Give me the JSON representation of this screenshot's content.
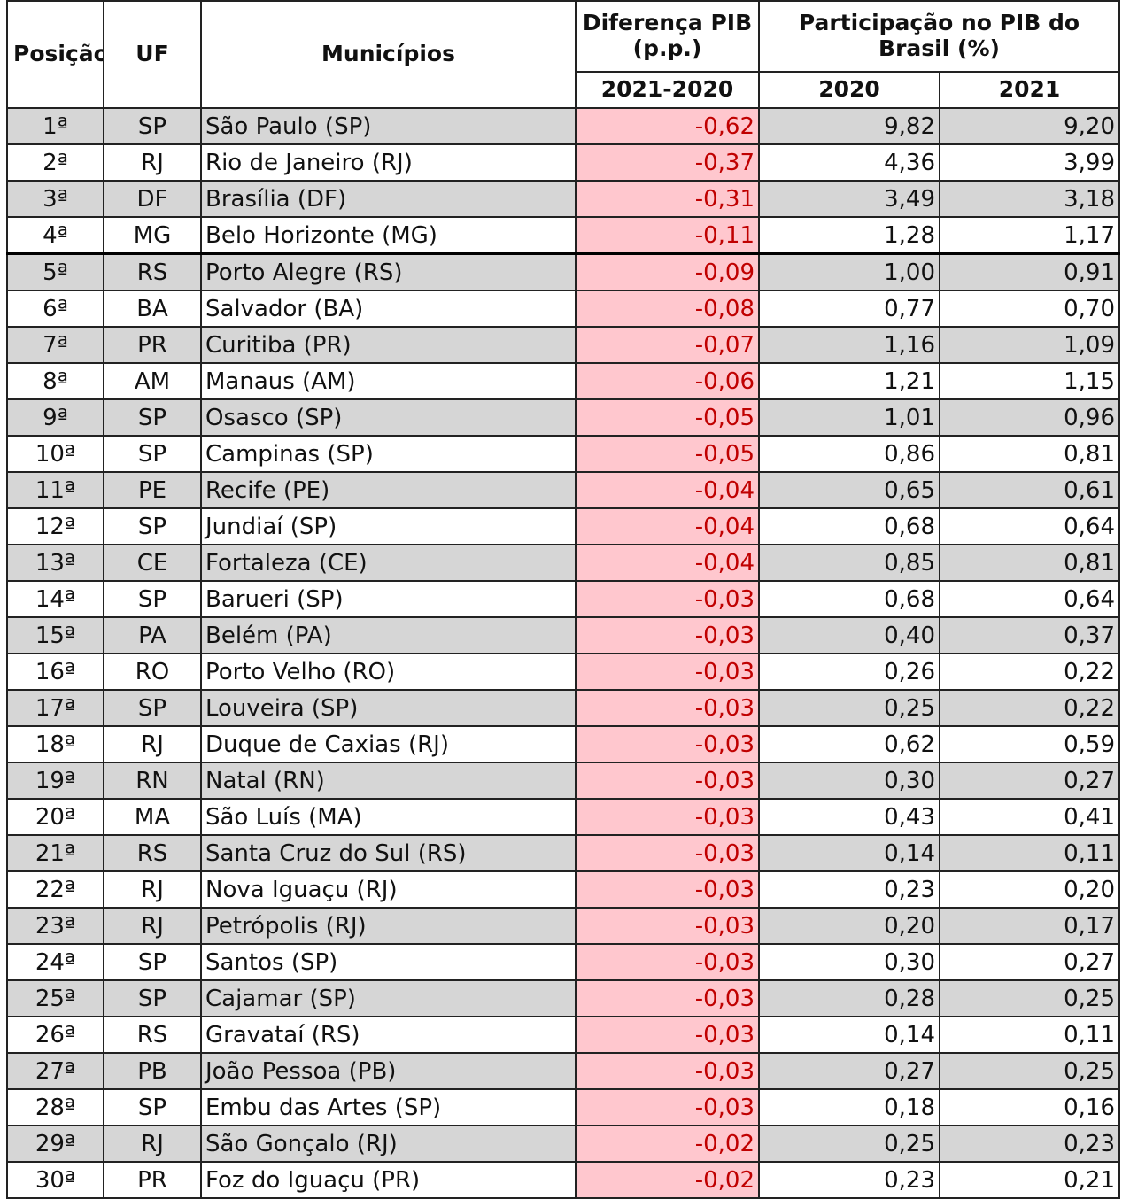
{
  "header": {
    "posicao": "Posição",
    "uf": "UF",
    "municipios": "Municípios",
    "diferenca_title": "Diferença PIB (p.p.)",
    "diferenca_sub": "2021-2020",
    "participacao_title": "Participação no PIB do Brasil (%)",
    "year_2020": "2020",
    "year_2021": "2021"
  },
  "colors": {
    "negative_fill": "#ffc7ce",
    "negative_text": "#c00000",
    "band_fill": "#d6d6d6"
  },
  "rows": [
    {
      "pos": "1ª",
      "uf": "SP",
      "municipio": "São Paulo (SP)",
      "dif": "-0,62",
      "p2020": "9,82",
      "p2021": "9,20"
    },
    {
      "pos": "2ª",
      "uf": "RJ",
      "municipio": "Rio de Janeiro (RJ)",
      "dif": "-0,37",
      "p2020": "4,36",
      "p2021": "3,99"
    },
    {
      "pos": "3ª",
      "uf": "DF",
      "municipio": "Brasília (DF)",
      "dif": "-0,31",
      "p2020": "3,49",
      "p2021": "3,18"
    },
    {
      "pos": "4ª",
      "uf": "MG",
      "municipio": "Belo Horizonte (MG)",
      "dif": "-0,11",
      "p2020": "1,28",
      "p2021": "1,17"
    },
    {
      "pos": "5ª",
      "uf": "RS",
      "municipio": "Porto Alegre (RS)",
      "dif": "-0,09",
      "p2020": "1,00",
      "p2021": "0,91"
    },
    {
      "pos": "6ª",
      "uf": "BA",
      "municipio": "Salvador (BA)",
      "dif": "-0,08",
      "p2020": "0,77",
      "p2021": "0,70"
    },
    {
      "pos": "7ª",
      "uf": "PR",
      "municipio": "Curitiba (PR)",
      "dif": "-0,07",
      "p2020": "1,16",
      "p2021": "1,09"
    },
    {
      "pos": "8ª",
      "uf": "AM",
      "municipio": "Manaus (AM)",
      "dif": "-0,06",
      "p2020": "1,21",
      "p2021": "1,15"
    },
    {
      "pos": "9ª",
      "uf": "SP",
      "municipio": "Osasco (SP)",
      "dif": "-0,05",
      "p2020": "1,01",
      "p2021": "0,96"
    },
    {
      "pos": "10ª",
      "uf": "SP",
      "municipio": "Campinas (SP)",
      "dif": "-0,05",
      "p2020": "0,86",
      "p2021": "0,81"
    },
    {
      "pos": "11ª",
      "uf": "PE",
      "municipio": "Recife (PE)",
      "dif": "-0,04",
      "p2020": "0,65",
      "p2021": "0,61"
    },
    {
      "pos": "12ª",
      "uf": "SP",
      "municipio": "Jundiaí (SP)",
      "dif": "-0,04",
      "p2020": "0,68",
      "p2021": "0,64"
    },
    {
      "pos": "13ª",
      "uf": "CE",
      "municipio": "Fortaleza (CE)",
      "dif": "-0,04",
      "p2020": "0,85",
      "p2021": "0,81"
    },
    {
      "pos": "14ª",
      "uf": "SP",
      "municipio": "Barueri (SP)",
      "dif": "-0,03",
      "p2020": "0,68",
      "p2021": "0,64"
    },
    {
      "pos": "15ª",
      "uf": "PA",
      "municipio": "Belém (PA)",
      "dif": "-0,03",
      "p2020": "0,40",
      "p2021": "0,37"
    },
    {
      "pos": "16ª",
      "uf": "RO",
      "municipio": "Porto Velho (RO)",
      "dif": "-0,03",
      "p2020": "0,26",
      "p2021": "0,22"
    },
    {
      "pos": "17ª",
      "uf": "SP",
      "municipio": "Louveira (SP)",
      "dif": "-0,03",
      "p2020": "0,25",
      "p2021": "0,22"
    },
    {
      "pos": "18ª",
      "uf": "RJ",
      "municipio": "Duque de Caxias (RJ)",
      "dif": "-0,03",
      "p2020": "0,62",
      "p2021": "0,59"
    },
    {
      "pos": "19ª",
      "uf": "RN",
      "municipio": "Natal (RN)",
      "dif": "-0,03",
      "p2020": "0,30",
      "p2021": "0,27"
    },
    {
      "pos": "20ª",
      "uf": "MA",
      "municipio": "São Luís (MA)",
      "dif": "-0,03",
      "p2020": "0,43",
      "p2021": "0,41"
    },
    {
      "pos": "21ª",
      "uf": "RS",
      "municipio": "Santa Cruz do Sul (RS)",
      "dif": "-0,03",
      "p2020": "0,14",
      "p2021": "0,11"
    },
    {
      "pos": "22ª",
      "uf": "RJ",
      "municipio": "Nova Iguaçu (RJ)",
      "dif": "-0,03",
      "p2020": "0,23",
      "p2021": "0,20"
    },
    {
      "pos": "23ª",
      "uf": "RJ",
      "municipio": "Petrópolis (RJ)",
      "dif": "-0,03",
      "p2020": "0,20",
      "p2021": "0,17"
    },
    {
      "pos": "24ª",
      "uf": "SP",
      "municipio": "Santos (SP)",
      "dif": "-0,03",
      "p2020": "0,30",
      "p2021": "0,27"
    },
    {
      "pos": "25ª",
      "uf": "SP",
      "municipio": "Cajamar (SP)",
      "dif": "-0,03",
      "p2020": "0,28",
      "p2021": "0,25"
    },
    {
      "pos": "26ª",
      "uf": "RS",
      "municipio": "Gravataí (RS)",
      "dif": "-0,03",
      "p2020": "0,14",
      "p2021": "0,11"
    },
    {
      "pos": "27ª",
      "uf": "PB",
      "municipio": "João Pessoa (PB)",
      "dif": "-0,03",
      "p2020": "0,27",
      "p2021": "0,25"
    },
    {
      "pos": "28ª",
      "uf": "SP",
      "municipio": "Embu das Artes (SP)",
      "dif": "-0,03",
      "p2020": "0,18",
      "p2021": "0,16"
    },
    {
      "pos": "29ª",
      "uf": "RJ",
      "municipio": "São Gonçalo (RJ)",
      "dif": "-0,02",
      "p2020": "0,25",
      "p2021": "0,23"
    },
    {
      "pos": "30ª",
      "uf": "PR",
      "municipio": "Foz do Iguaçu (PR)",
      "dif": "-0,02",
      "p2020": "0,23",
      "p2021": "0,21"
    }
  ]
}
